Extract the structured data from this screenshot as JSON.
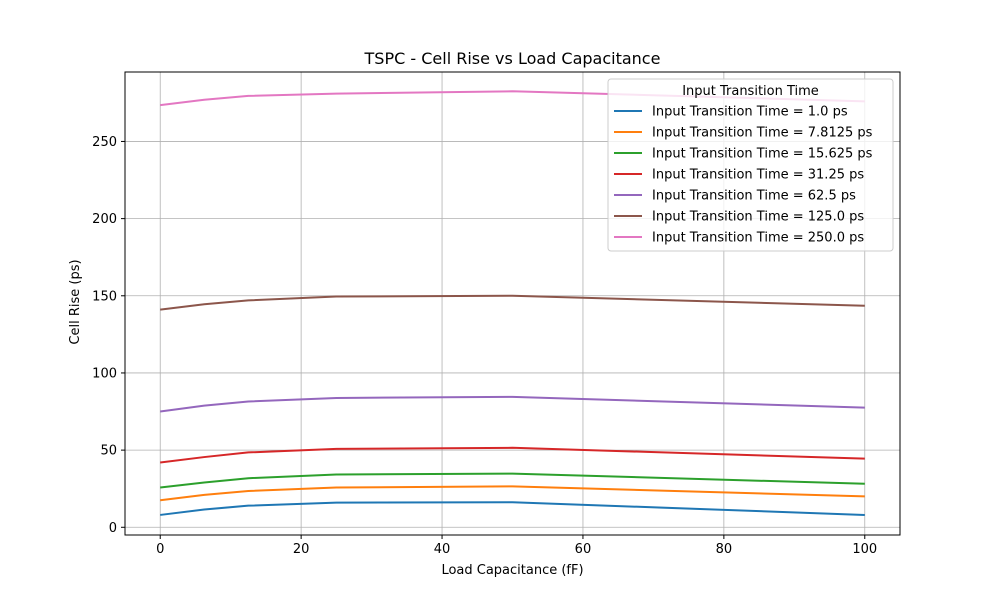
{
  "chart_data": {
    "type": "line",
    "title": "TSPC - Cell Rise vs Load Capacitance",
    "xlabel": "Load Capacitance (fF)",
    "ylabel": "Cell Rise (ps)",
    "xlim": [
      -5,
      105
    ],
    "ylim": [
      -5,
      295
    ],
    "xticks": [
      0,
      20,
      40,
      60,
      80,
      100
    ],
    "yticks": [
      0,
      50,
      100,
      150,
      200,
      250
    ],
    "grid": true,
    "legend": {
      "title": "Input Transition Time",
      "placement": "top-right"
    },
    "x": [
      0,
      6.25,
      12.5,
      25,
      50,
      100
    ],
    "series": [
      {
        "name": "Input Transition Time = 1.0 ps",
        "color": "#1f77b4",
        "values": [
          8.0,
          11.5,
          14.0,
          16.0,
          16.2,
          8.0
        ]
      },
      {
        "name": "Input Transition Time = 7.8125 ps",
        "color": "#ff7f0e",
        "values": [
          17.5,
          21.0,
          23.5,
          25.8,
          26.5,
          20.0
        ]
      },
      {
        "name": "Input Transition Time = 15.625 ps",
        "color": "#2ca02c",
        "values": [
          25.8,
          29.0,
          31.8,
          34.2,
          34.8,
          28.2
        ]
      },
      {
        "name": "Input Transition Time = 31.25 ps",
        "color": "#d62728",
        "values": [
          42.0,
          45.5,
          48.5,
          50.8,
          51.5,
          44.5
        ]
      },
      {
        "name": "Input Transition Time = 62.5 ps",
        "color": "#9467bd",
        "values": [
          75.0,
          78.8,
          81.5,
          83.8,
          84.5,
          77.5
        ]
      },
      {
        "name": "Input Transition Time = 125.0 ps",
        "color": "#8c564b",
        "values": [
          141.0,
          144.5,
          147.0,
          149.5,
          150.0,
          143.5
        ]
      },
      {
        "name": "Input Transition Time = 250.0 ps",
        "color": "#e377c2",
        "values": [
          273.5,
          277.0,
          279.5,
          281.0,
          282.5,
          276.0
        ]
      }
    ]
  }
}
